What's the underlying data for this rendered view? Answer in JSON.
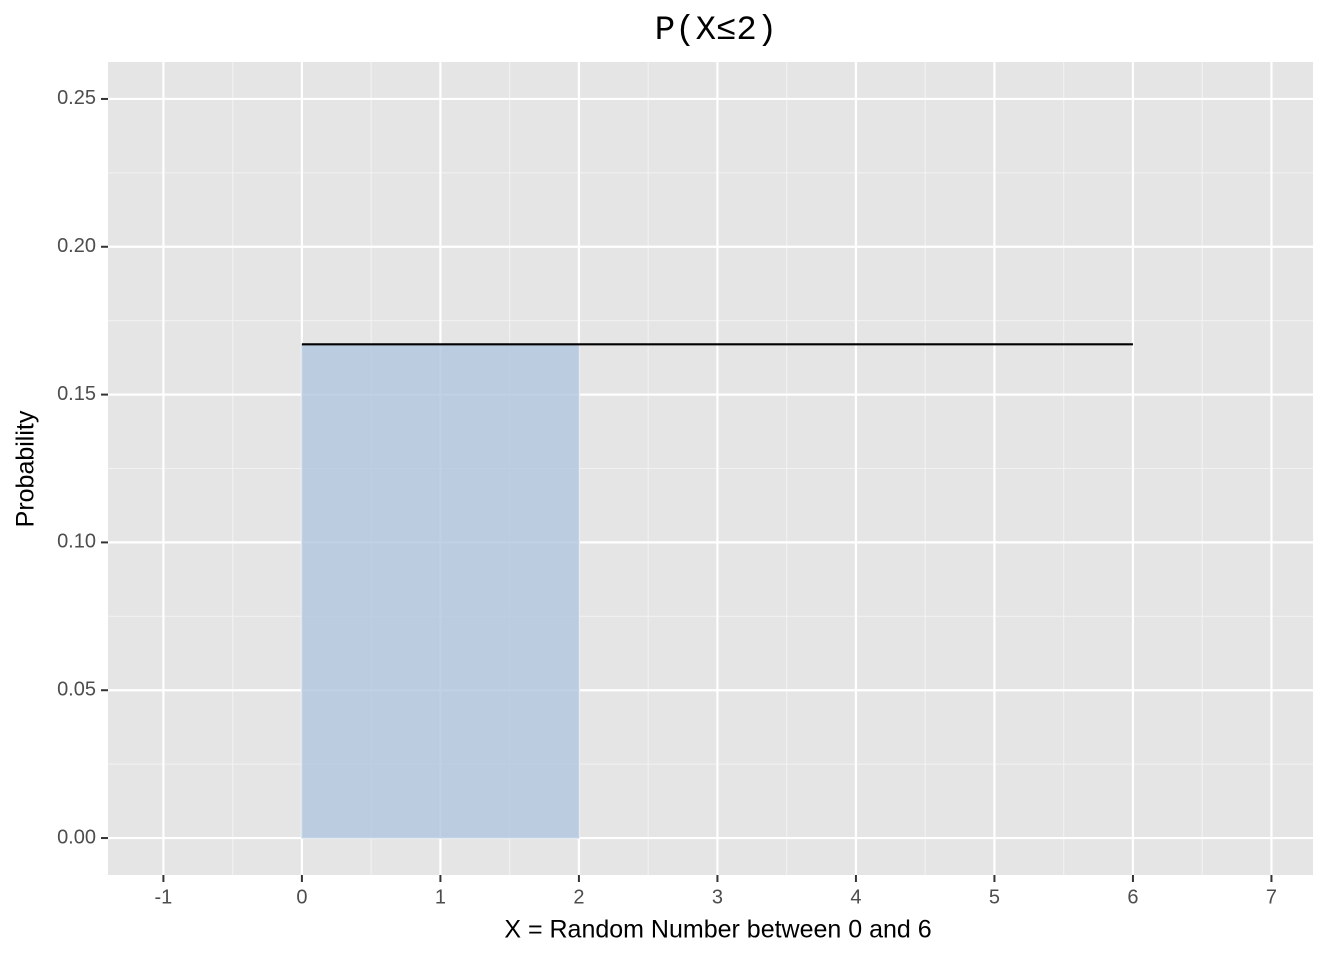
{
  "chart_data": {
    "type": "line",
    "title": "P(X≤2)",
    "x_label": "X = Random Number between 0 and 6",
    "y_label": "Probability",
    "x": [
      0,
      6
    ],
    "values": [
      0.167,
      0.167
    ],
    "color": "#000000",
    "shade": {
      "x": [
        0,
        2
      ],
      "values": [
        0.167,
        0.167
      ],
      "color": "#b0c4de",
      "alpha": 0.8
    },
    "xlim": [
      -1.4,
      7.3
    ],
    "xticks": [
      -1,
      0,
      1,
      2,
      3,
      4,
      5,
      6,
      7
    ],
    "xminorticks": [
      -0.5,
      0.5,
      1.5,
      2.5,
      3.5,
      4.5,
      5.5,
      6.5
    ],
    "ylim": [
      -0.0125,
      0.2625
    ],
    "yticks": [
      {
        "value": 0,
        "label": "0.00"
      },
      {
        "value": 0.05,
        "label": "0.05"
      },
      {
        "value": 0.1,
        "label": "0.10"
      },
      {
        "value": 0.15,
        "label": "0.15"
      },
      {
        "value": 0.2,
        "label": "0.20"
      },
      {
        "value": 0.25,
        "label": "0.25"
      }
    ],
    "yminorticks": [
      0.025,
      0.075,
      0.125,
      0.175,
      0.225
    ],
    "grid": true
  }
}
